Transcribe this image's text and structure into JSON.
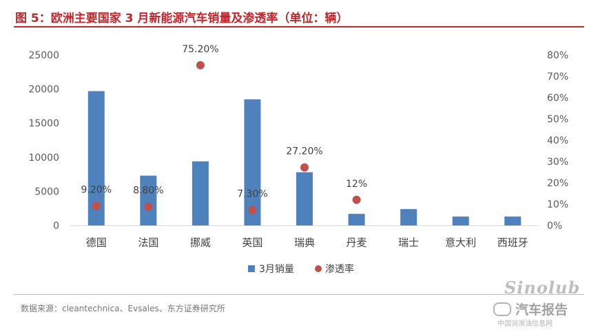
{
  "header": {
    "title": "图 5：欧洲主要国家 3 月新能源汽车销量及渗透率（单位：辆）"
  },
  "footer": {
    "source": "数据来源：cleantechnica、Evsales、东方证券研究所"
  },
  "watermark": {
    "logo_text": "Sinolub",
    "name": "汽车报告",
    "subtitle": "中国润滑油信息网"
  },
  "colors": {
    "bar": "#4f81bd",
    "dot": "#c0504d",
    "title": "#c0262d"
  },
  "chart_data": {
    "type": "bar",
    "title": "欧洲主要国家 3 月新能源汽车销量及渗透率（单位：辆）",
    "categories": [
      "德国",
      "法国",
      "挪威",
      "英国",
      "瑞典",
      "丹麦",
      "瑞士",
      "意大利",
      "西班牙"
    ],
    "series": [
      {
        "name": "3月销量",
        "type": "bar",
        "axis": "left",
        "values": [
          19700,
          7300,
          9400,
          18500,
          7800,
          1700,
          2400,
          1300,
          1300
        ]
      },
      {
        "name": "渗透率",
        "type": "scatter",
        "axis": "right",
        "values": [
          0.092,
          0.088,
          0.752,
          0.073,
          0.272,
          0.12,
          null,
          null,
          null
        ],
        "labels": [
          "9.20%",
          "8.80%",
          "75.20%",
          "7.30%",
          "27.20%",
          "12%",
          null,
          null,
          null
        ]
      }
    ],
    "y_left": {
      "min": 0,
      "max": 25000,
      "ticks": [
        0,
        5000,
        10000,
        15000,
        20000,
        25000
      ],
      "tick_labels": [
        "0",
        "5000",
        "10000",
        "15000",
        "20000",
        "25000"
      ]
    },
    "y_right": {
      "min": 0,
      "max": 0.8,
      "ticks": [
        0,
        0.1,
        0.2,
        0.3,
        0.4,
        0.5,
        0.6,
        0.7,
        0.8
      ],
      "tick_labels": [
        "0%",
        "10%",
        "20%",
        "30%",
        "40%",
        "50%",
        "60%",
        "70%",
        "80%"
      ]
    },
    "grid": false,
    "legend": {
      "position": "bottom",
      "entries": [
        "3月销量",
        "渗透率"
      ]
    }
  }
}
